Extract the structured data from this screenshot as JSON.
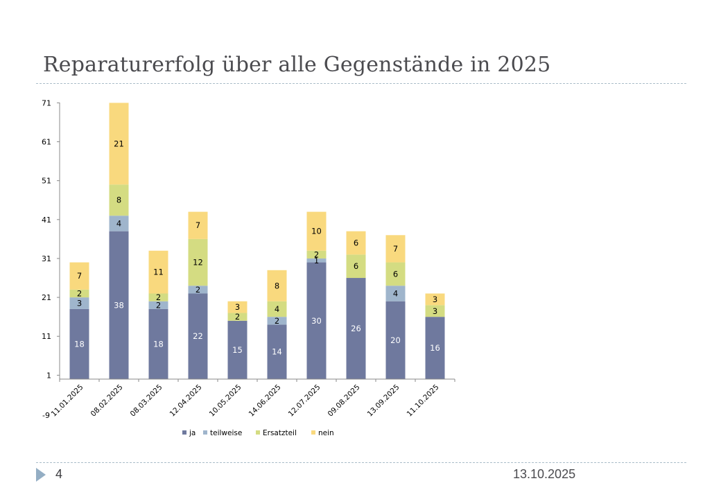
{
  "slide": {
    "title": "Reparaturerfolg über alle Gegenstände in 2025",
    "page_number": "4",
    "date": "13.10.2025",
    "footer_icon": "triangle-right-icon"
  },
  "colors": {
    "ja": "#6f799e",
    "teilweise": "#9fb5cc",
    "Ersatzteil": "#d4dc82",
    "nein": "#f9d97e",
    "title": "#4b4b4f",
    "rule": "#a9bcc8",
    "footer_arrow": "#94aec4"
  },
  "chart_data": {
    "type": "bar",
    "stacked": true,
    "title": "",
    "xlabel": "",
    "ylabel": "",
    "ylim": [
      -9,
      71
    ],
    "y_ticks": [
      -9,
      1,
      11,
      21,
      31,
      41,
      51,
      61,
      71
    ],
    "y_tick_labels": [
      "-9",
      "1",
      "11",
      "21",
      "31",
      "41",
      "51",
      "61",
      "71"
    ],
    "grid": false,
    "legend_position": "bottom",
    "categories": [
      "11.01.2025",
      "08.02.2025",
      "08.03.2025",
      "12.04.2025",
      "10.05.2025",
      "14.06.2025",
      "12.07.2025",
      "09.08.2025",
      "13.09.2025",
      "11.10.2025"
    ],
    "series": [
      {
        "name": "ja",
        "values": [
          18,
          38,
          18,
          22,
          15,
          14,
          30,
          26,
          20,
          16
        ]
      },
      {
        "name": "teilweise",
        "values": [
          3,
          4,
          2,
          2,
          0,
          2,
          1,
          0,
          4,
          0
        ]
      },
      {
        "name": "Ersatzteil",
        "values": [
          2,
          8,
          2,
          12,
          2,
          4,
          2,
          6,
          6,
          3
        ]
      },
      {
        "name": "nein",
        "values": [
          7,
          21,
          11,
          7,
          3,
          8,
          10,
          6,
          7,
          3
        ]
      }
    ],
    "data_labels": true
  }
}
